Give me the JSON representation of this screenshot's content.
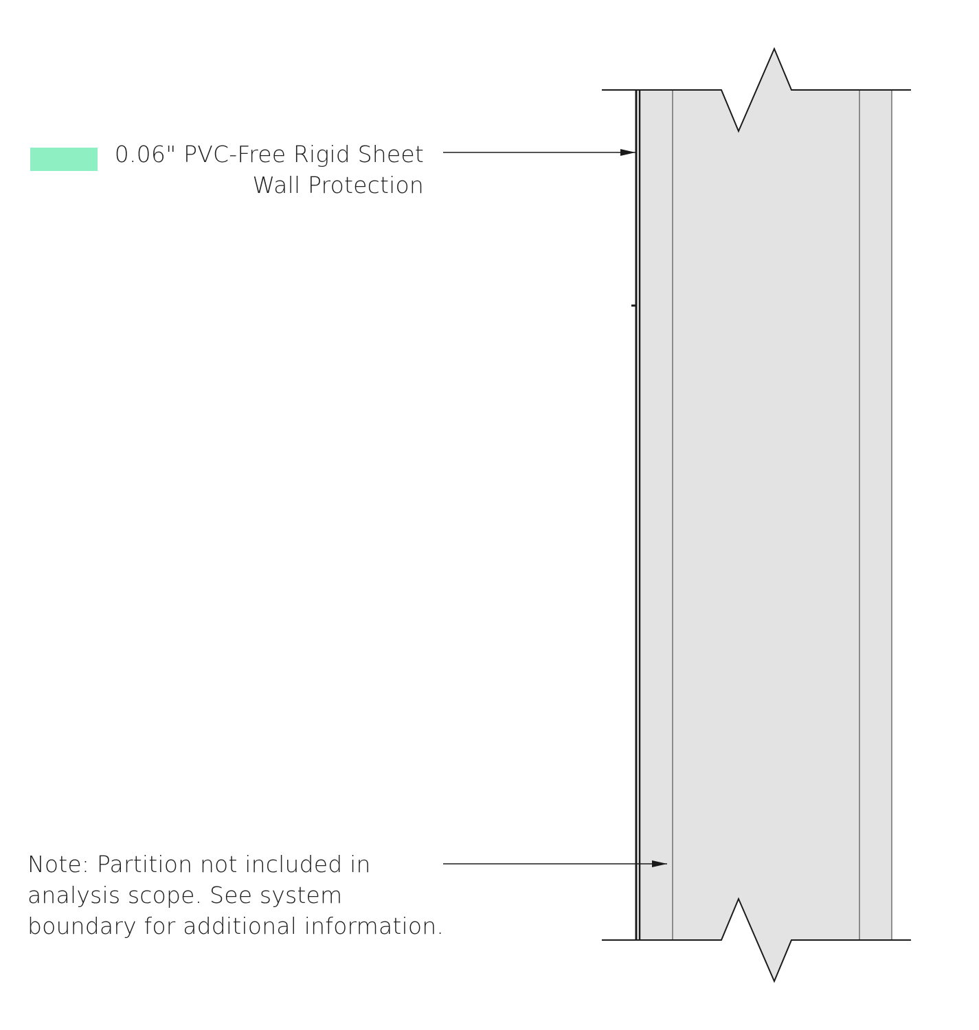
{
  "legend": {
    "swatch_color": "#8ef0c2",
    "material_line1": "0.06\" PVC-Free Rigid Sheet",
    "material_line2": "Wall Protection"
  },
  "note": {
    "line1": "Note: Partition not included in",
    "line2": "analysis scope. See system",
    "line3": "boundary for additional information."
  },
  "colors": {
    "wall_fill": "#e4e3e4",
    "line": "#1a1a1a",
    "layer_line": "#6e6e6e"
  }
}
